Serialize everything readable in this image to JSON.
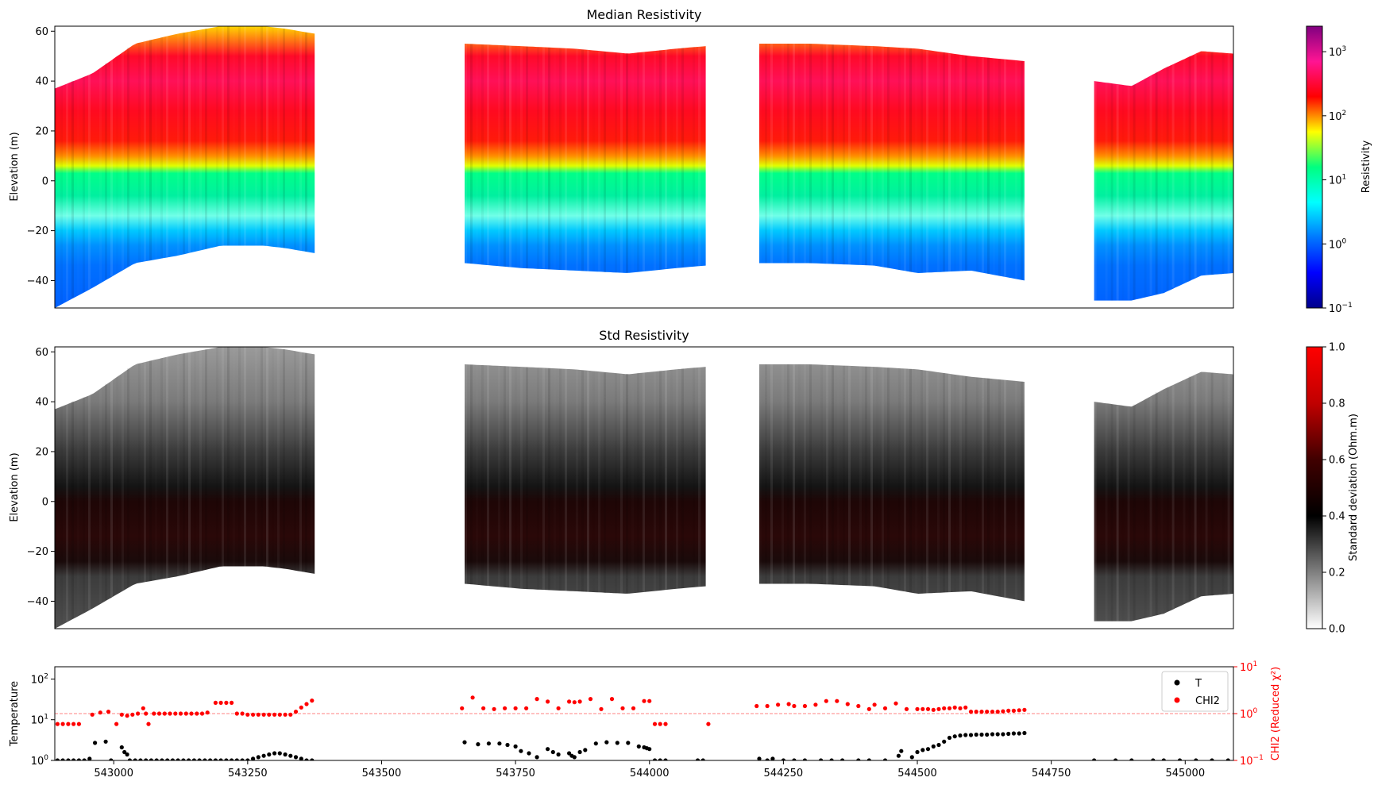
{
  "chart_data": [
    {
      "type": "heatmap",
      "title": "Median Resistivity",
      "xlabel": "",
      "ylabel": "Elevation (m)",
      "ylim": [
        -51,
        62
      ],
      "xlim": [
        542890,
        545090
      ],
      "yticks": [
        60,
        40,
        20,
        0,
        -20,
        -40
      ],
      "colorbar": {
        "label": "Resistivity",
        "scale": "log",
        "range": [
          0.1,
          2500
        ],
        "ticks": [
          {
            "value": 1000,
            "base": "10",
            "exp": "3"
          },
          {
            "value": 100,
            "base": "10",
            "exp": "2"
          },
          {
            "value": 10,
            "base": "10",
            "exp": "1"
          },
          {
            "value": 1,
            "base": "10",
            "exp": "0"
          },
          {
            "value": 0.1,
            "base": "10",
            "exp": "−1"
          }
        ],
        "colors": [
          "#00008b",
          "#0000ff",
          "#0077ff",
          "#00ffff",
          "#00ff80",
          "#ffff00",
          "#ff0000",
          "#ff1493",
          "#800080"
        ]
      },
      "sections": [
        {
          "x0": 542890,
          "x1": 543375,
          "surface_x": [
            542890,
            542960,
            543040,
            543120,
            543200,
            543280,
            543320,
            543375
          ],
          "surface": [
            37,
            43,
            55,
            59,
            62,
            62,
            61,
            59
          ],
          "bottom_x": [
            542890,
            542960,
            543040,
            543120,
            543200,
            543280,
            543320,
            543375
          ],
          "bottom": [
            -51,
            -43,
            -33,
            -30,
            -26,
            -26,
            -27,
            -29
          ]
        },
        {
          "x0": 543655,
          "x1": 544105,
          "surface_x": [
            543655,
            543760,
            543860,
            543960,
            544050,
            544105
          ],
          "surface": [
            55,
            54,
            53,
            51,
            53,
            54
          ],
          "bottom_x": [
            543655,
            543760,
            543860,
            543960,
            544050,
            544105
          ],
          "bottom": [
            -33,
            -35,
            -36,
            -37,
            -35,
            -34
          ]
        },
        {
          "x0": 544205,
          "x1": 544700,
          "surface_x": [
            544205,
            544300,
            544420,
            544500,
            544600,
            544700
          ],
          "surface": [
            55,
            55,
            54,
            53,
            50,
            48
          ],
          "bottom_x": [
            544205,
            544300,
            544420,
            544500,
            544600,
            544700
          ],
          "bottom": [
            -33,
            -33,
            -34,
            -37,
            -36,
            -40
          ]
        },
        {
          "x0": 544830,
          "x1": 545090,
          "surface_x": [
            544830,
            544900,
            544960,
            545030,
            545090
          ],
          "surface": [
            40,
            38,
            45,
            52,
            51
          ],
          "bottom_x": [
            544830,
            544900,
            544960,
            545030,
            545090
          ],
          "bottom": [
            -48,
            -48,
            -45,
            -38,
            -37
          ]
        }
      ],
      "profile": [
        {
          "elev": 62,
          "color": "#ffd700"
        },
        {
          "elev": 50,
          "color": "#ff0a28"
        },
        {
          "elev": 40,
          "color": "#ff1058"
        },
        {
          "elev": 28,
          "color": "#ff0a20"
        },
        {
          "elev": 16,
          "color": "#ff1a0a"
        },
        {
          "elev": 10,
          "color": "#ff8c00"
        },
        {
          "elev": 6,
          "color": "#e0ff00"
        },
        {
          "elev": 3,
          "color": "#00ff88"
        },
        {
          "elev": -6,
          "color": "#00f0a0"
        },
        {
          "elev": -14,
          "color": "#70ffe8"
        },
        {
          "elev": -20,
          "color": "#00c8ff"
        },
        {
          "elev": -26,
          "color": "#0090ff"
        },
        {
          "elev": -34,
          "color": "#0070ff"
        },
        {
          "elev": -51,
          "color": "#0060ff"
        }
      ]
    },
    {
      "type": "heatmap",
      "title": "Std Resistivity",
      "xlabel": "",
      "ylabel": "Elevation (m)",
      "ylim": [
        -51,
        62
      ],
      "xlim": [
        542890,
        545090
      ],
      "yticks": [
        60,
        40,
        20,
        0,
        -20,
        -40
      ],
      "colorbar": {
        "label": "Standard deviation (Ohm.m)",
        "scale": "linear",
        "range": [
          0.0,
          1.0
        ],
        "ticks": [
          {
            "value": 1.0,
            "label": "1.0"
          },
          {
            "value": 0.8,
            "label": "0.8"
          },
          {
            "value": 0.6,
            "label": "0.6"
          },
          {
            "value": 0.4,
            "label": "0.4"
          },
          {
            "value": 0.2,
            "label": "0.2"
          },
          {
            "value": 0.0,
            "label": "0.0"
          }
        ],
        "colors": [
          "#ffffff",
          "#808080",
          "#000000",
          "#400000",
          "#c00000",
          "#ff0000"
        ]
      },
      "profile": [
        {
          "elev": 62,
          "color": "#9a9a9a"
        },
        {
          "elev": 40,
          "color": "#7a7a7a"
        },
        {
          "elev": 20,
          "color": "#3a3a3a"
        },
        {
          "elev": 6,
          "color": "#141414"
        },
        {
          "elev": 0,
          "color": "#1e0606"
        },
        {
          "elev": -14,
          "color": "#2a0808"
        },
        {
          "elev": -24,
          "color": "#1a0a0a"
        },
        {
          "elev": -30,
          "color": "#3c3c3c"
        },
        {
          "elev": -51,
          "color": "#505050"
        }
      ]
    },
    {
      "type": "scatter",
      "title": "",
      "xlabel": "",
      "ylabel": "Temperature",
      "y2label": "CHI2 (Reduced χ²)",
      "xlim": [
        542890,
        545090
      ],
      "ylim": [
        1,
        200
      ],
      "y2lim": [
        0.1,
        10
      ],
      "xticks": [
        "543000",
        "543250",
        "543500",
        "543750",
        "544000",
        "544250",
        "544500",
        "544750",
        "545000"
      ],
      "xtick_values": [
        543000,
        543250,
        543500,
        543750,
        544000,
        544250,
        544500,
        544750,
        545000
      ],
      "yticks": [
        {
          "value": 100,
          "base": "10",
          "exp": "2"
        },
        {
          "value": 10,
          "base": "10",
          "exp": "1"
        },
        {
          "value": 1,
          "base": "10",
          "exp": "0"
        }
      ],
      "y2ticks": [
        {
          "value": 10,
          "base": "10",
          "exp": "1"
        },
        {
          "value": 1,
          "base": "10",
          "exp": "0"
        },
        {
          "value": 0.1,
          "base": "10",
          "exp": "−1"
        }
      ],
      "reference_line": {
        "axis": "y2",
        "value": 1.0,
        "color": "#ff8080"
      },
      "legend": {
        "position": "top-right",
        "entries": [
          {
            "name": "T",
            "color": "#000000"
          },
          {
            "name": "CHI2",
            "color": "#ff0000"
          }
        ]
      },
      "series": [
        {
          "name": "T",
          "color": "#000000",
          "axis": "y",
          "x": [
            542895,
            542905,
            542915,
            542925,
            542935,
            542945,
            542955,
            542965,
            542985,
            542995,
            543015,
            543020,
            543025,
            543030,
            543040,
            543050,
            543060,
            543070,
            543080,
            543090,
            543100,
            543110,
            543120,
            543130,
            543140,
            543150,
            543160,
            543170,
            543180,
            543190,
            543200,
            543210,
            543220,
            543230,
            543240,
            543250,
            543260,
            543270,
            543280,
            543290,
            543300,
            543310,
            543320,
            543330,
            543340,
            543350,
            543360,
            543370,
            543655,
            543680,
            543700,
            543720,
            543735,
            543750,
            543760,
            543775,
            543790,
            543810,
            543820,
            543830,
            543850,
            543855,
            543860,
            543870,
            543880,
            543900,
            543920,
            543940,
            543960,
            543980,
            543990,
            543995,
            544000,
            544010,
            544020,
            544030,
            544090,
            544100,
            544205,
            544220,
            544230,
            544250,
            544270,
            544290,
            544320,
            544340,
            544360,
            544390,
            544410,
            544440,
            544465,
            544470,
            544490,
            544500,
            544510,
            544520,
            544530,
            544540,
            544550,
            544560,
            544570,
            544580,
            544590,
            544600,
            544610,
            544620,
            544630,
            544640,
            544650,
            544660,
            544670,
            544680,
            544690,
            544700,
            544830,
            544870,
            544900,
            544940,
            544960,
            544990,
            545020,
            545050,
            545080
          ],
          "values": [
            1,
            1,
            1,
            1,
            1,
            1,
            1.1,
            2.7,
            2.9,
            1,
            2.1,
            1.6,
            1.4,
            1,
            1,
            1,
            1,
            1,
            1,
            1,
            1,
            1,
            1,
            1,
            1,
            1,
            1,
            1,
            1,
            1,
            1,
            1,
            1,
            1,
            1,
            1,
            1.1,
            1.2,
            1.3,
            1.4,
            1.5,
            1.5,
            1.4,
            1.3,
            1.2,
            1.1,
            1,
            1,
            2.8,
            2.5,
            2.6,
            2.6,
            2.4,
            2.2,
            1.7,
            1.5,
            1.2,
            1.9,
            1.6,
            1.4,
            1.5,
            1.3,
            1.2,
            1.6,
            1.8,
            2.6,
            2.8,
            2.7,
            2.7,
            2.2,
            2.1,
            2.0,
            1.9,
            1,
            1,
            1,
            1,
            1,
            1.1,
            1,
            1.1,
            1,
            1,
            1,
            1,
            1,
            1,
            1,
            1,
            1,
            1.3,
            1.7,
            1.2,
            1.6,
            1.8,
            1.9,
            2.2,
            2.4,
            2.9,
            3.6,
            3.9,
            4.1,
            4.2,
            4.2,
            4.3,
            4.3,
            4.3,
            4.4,
            4.4,
            4.4,
            4.5,
            4.6,
            4.6,
            4.7,
            1,
            1,
            1,
            1,
            1,
            1,
            1,
            1,
            1
          ]
        },
        {
          "name": "CHI2",
          "color": "#ff0000",
          "axis": "y2",
          "x": [
            542895,
            542905,
            542915,
            542925,
            542935,
            542960,
            542975,
            542990,
            543005,
            543015,
            543025,
            543035,
            543045,
            543055,
            543060,
            543065,
            543075,
            543085,
            543095,
            543105,
            543115,
            543125,
            543135,
            543145,
            543155,
            543165,
            543175,
            543190,
            543200,
            543210,
            543220,
            543230,
            543240,
            543250,
            543260,
            543270,
            543280,
            543290,
            543300,
            543310,
            543320,
            543330,
            543340,
            543350,
            543360,
            543370,
            543650,
            543670,
            543690,
            543710,
            543730,
            543750,
            543770,
            543790,
            543810,
            543830,
            543850,
            543860,
            543870,
            543890,
            543910,
            543930,
            543950,
            543970,
            543990,
            544000,
            544010,
            544020,
            544030,
            544110,
            544200,
            544220,
            544240,
            544260,
            544270,
            544290,
            544310,
            544330,
            544350,
            544370,
            544390,
            544410,
            544420,
            544440,
            544460,
            544480,
            544500,
            544510,
            544520,
            544530,
            544540,
            544550,
            544560,
            544570,
            544580,
            544590,
            544600,
            544610,
            544620,
            544630,
            544640,
            544650,
            544660,
            544670,
            544680,
            544690,
            544700
          ],
          "values": [
            0.6,
            0.6,
            0.6,
            0.6,
            0.6,
            0.95,
            1.05,
            1.1,
            0.6,
            0.95,
            0.9,
            0.95,
            1.0,
            1.3,
            1.0,
            0.6,
            1.0,
            1.0,
            1.0,
            1.0,
            1.0,
            1.0,
            1.0,
            1.0,
            1.0,
            1.0,
            1.05,
            1.7,
            1.7,
            1.7,
            1.7,
            1.0,
            1.0,
            0.95,
            0.95,
            0.95,
            0.95,
            0.95,
            0.95,
            0.95,
            0.95,
            0.95,
            1.1,
            1.35,
            1.6,
            1.9,
            1.3,
            2.2,
            1.3,
            1.25,
            1.3,
            1.3,
            1.3,
            2.05,
            1.8,
            1.3,
            1.8,
            1.75,
            1.8,
            2.05,
            1.25,
            2.05,
            1.3,
            1.3,
            1.85,
            1.85,
            0.6,
            0.6,
            0.6,
            0.6,
            1.45,
            1.45,
            1.55,
            1.6,
            1.45,
            1.45,
            1.55,
            1.85,
            1.85,
            1.6,
            1.45,
            1.25,
            1.55,
            1.3,
            1.65,
            1.25,
            1.25,
            1.25,
            1.25,
            1.2,
            1.25,
            1.3,
            1.3,
            1.35,
            1.3,
            1.35,
            1.1,
            1.1,
            1.1,
            1.1,
            1.1,
            1.1,
            1.12,
            1.15,
            1.15,
            1.18,
            1.2
          ]
        }
      ]
    }
  ]
}
